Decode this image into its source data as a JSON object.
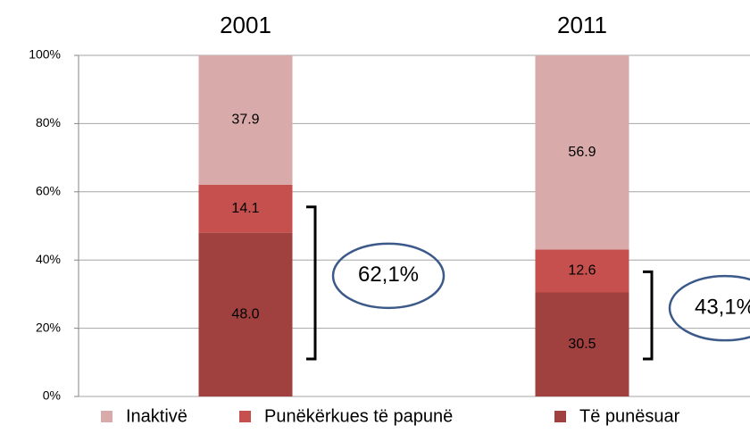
{
  "chart_data": {
    "type": "stacked_bar",
    "categories": [
      "2001",
      "2011"
    ],
    "series": [
      {
        "name": "Të punësuar",
        "color": "#a0403f",
        "values": [
          48.0,
          30.5
        ],
        "value_labels": [
          "48.0",
          "30.5"
        ]
      },
      {
        "name": "Punëkërkues të papunë",
        "color": "#c5504d",
        "values": [
          14.1,
          12.6
        ],
        "value_labels": [
          "14.1",
          "12.6"
        ]
      },
      {
        "name": "Inaktivë",
        "color": "#d9aaaa",
        "values": [
          37.9,
          56.9
        ],
        "value_labels": [
          "37.9",
          "56.9"
        ]
      }
    ],
    "annotations": [
      "62,1%",
      "43,1%"
    ],
    "ylim": [
      0,
      100
    ],
    "yticks": [
      {
        "value": 0,
        "label": "0%"
      },
      {
        "value": 20,
        "label": "20%"
      },
      {
        "value": 40,
        "label": "40%"
      },
      {
        "value": 60,
        "label": "60%"
      },
      {
        "value": 80,
        "label": "80%"
      },
      {
        "value": 100,
        "label": "100%"
      }
    ],
    "grid": true,
    "legend": "bottom"
  }
}
